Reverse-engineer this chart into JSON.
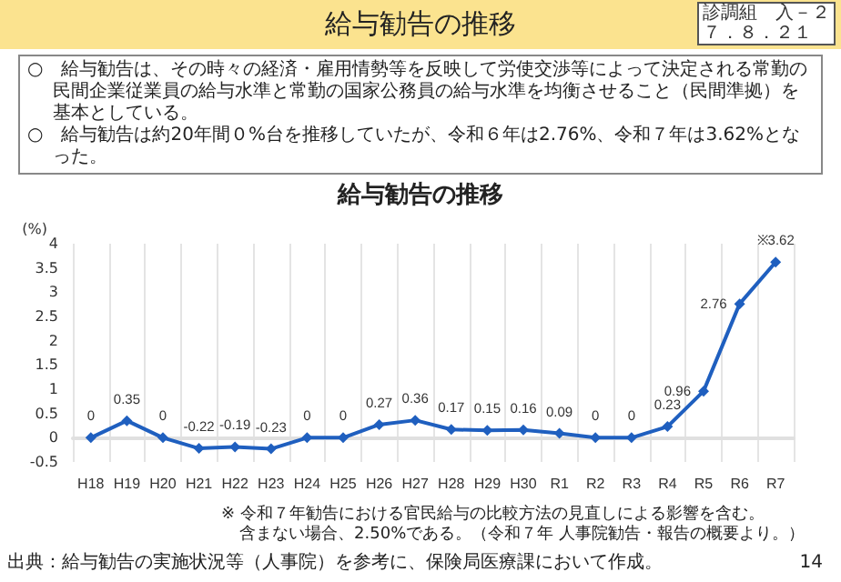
{
  "chart_data": {
    "type": "line",
    "subtitle": "給与勧告の推移",
    "title": "給与勧告の推移",
    "ylabel": "(%)",
    "categories": [
      "H18",
      "H19",
      "H20",
      "H21",
      "H22",
      "H23",
      "H24",
      "H25",
      "H26",
      "H27",
      "H28",
      "H29",
      "H30",
      "R1",
      "R2",
      "R3",
      "R4",
      "R5",
      "R6",
      "R7"
    ],
    "series": [
      {
        "color": "#1f5fbf",
        "values": [
          0,
          0.35,
          0,
          -0.22,
          -0.19,
          -0.23,
          0,
          0,
          0.27,
          0.36,
          0.17,
          0.15,
          0.16,
          0.09,
          0,
          0,
          0.23,
          0.96,
          2.76,
          3.62
        ],
        "value_labels": [
          "0",
          "0.35",
          "0",
          "-0.22",
          "-0.19",
          "-0.23",
          "0",
          "0",
          "0.27",
          "0.36",
          "0.17",
          "0.15",
          "0.16",
          "0.09",
          "0",
          "0",
          "0.23",
          "0.96",
          "2.76",
          "※3.62"
        ]
      }
    ],
    "ylim": [
      -0.5,
      4
    ],
    "yticks": [
      -0.5,
      0,
      0.5,
      1,
      1.5,
      2,
      2.5,
      3,
      3.5,
      4
    ],
    "grid": "x",
    "marker": "diamond",
    "line_style": "solid",
    "annotations": [
      "診調組　入－２",
      "７．８．２１",
      "○　給与勧告は、その時々の経済・雇用情勢等を反映して労使交渉等によって決定される常勤の民間企業従業員の給与水準と常勤の国家公務員の給与水準を均衡させること（民間準拠）を基本としている。",
      "○　給与勧告は約20年間０%台を推移していたが、令和６年は2.76%、令和７年は3.62%となった。",
      "※ 令和７年勧告における官民給与の比較方法の見直しによる影響を含む。",
      "含まない場合、2.50%である。（令和７年 人事院勧告・報告の概要より。）",
      "出典：給与勧告の実施状況等（人事院）を参考に、保険局医療課において作成。",
      "14"
    ]
  }
}
